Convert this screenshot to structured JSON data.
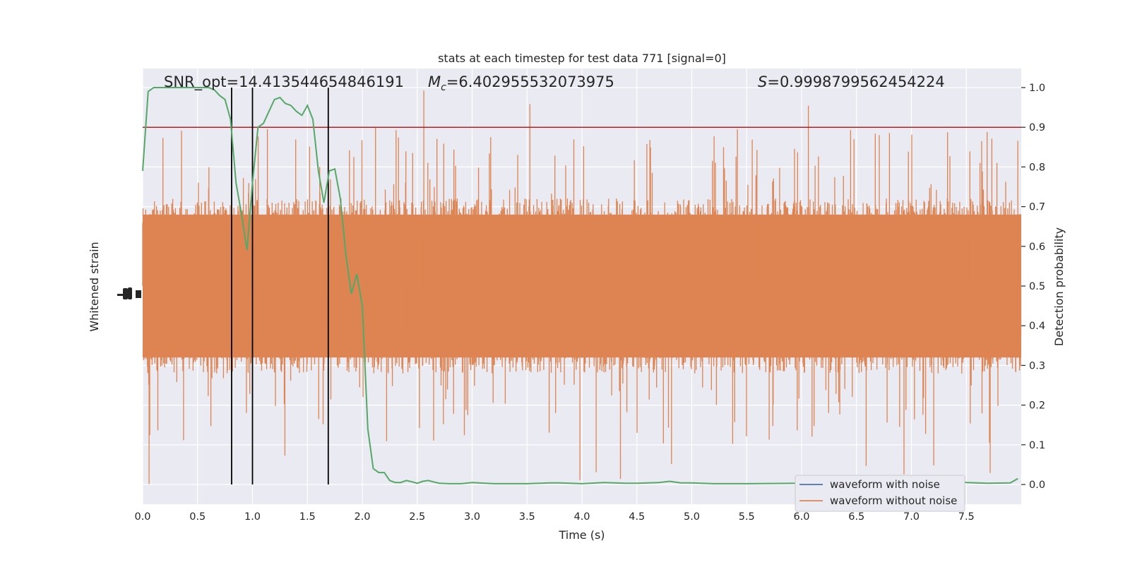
{
  "chart_data": {
    "type": "line",
    "title": "stats at each timestep for test data 771 [signal=0]",
    "xlabel": "Time (s)",
    "ylabel_left": "Whitened strain",
    "ylabel_right": "Detection probability",
    "xlim": [
      0.0,
      8.0
    ],
    "ylim_right": [
      -0.05,
      1.05
    ],
    "x_ticks": [
      0.0,
      0.5,
      1.0,
      1.5,
      2.0,
      2.5,
      3.0,
      3.5,
      4.0,
      4.5,
      5.0,
      5.5,
      6.0,
      6.5,
      7.0,
      7.5
    ],
    "x_tick_labels": [
      "0.0",
      "0.5",
      "1.0",
      "1.5",
      "2.0",
      "2.5",
      "3.0",
      "3.5",
      "4.0",
      "4.5",
      "5.0",
      "5.5",
      "6.0",
      "6.5",
      "7.0",
      "7.5"
    ],
    "y_ticks_right": [
      0.0,
      0.1,
      0.2,
      0.3,
      0.4,
      0.5,
      0.6,
      0.7,
      0.8,
      0.9,
      1.0
    ],
    "y_tick_labels_right": [
      "0.0",
      "0.1",
      "0.2",
      "0.3",
      "0.4",
      "0.5",
      "0.6",
      "0.7",
      "0.8",
      "0.9",
      "1.0"
    ],
    "grid": true,
    "legend_position": "bottom-right",
    "annotations": {
      "snr_label": "SNR_opt=14.413544654846191",
      "mc_symbol": "M",
      "mc_sub": "c",
      "mc_value": "=6.402955532073975",
      "s_symbol": "S",
      "s_value": "=0.9998799562454224"
    },
    "threshold": {
      "y": 0.9,
      "color": "#b22222"
    },
    "vertical_lines": {
      "x": [
        0.81,
        1.0,
        1.69
      ],
      "color": "#000000"
    },
    "series": [
      {
        "name": "waveform with noise",
        "color": "#4c72b0",
        "kind": "strain"
      },
      {
        "name": "waveform without noise",
        "color": "#dd8452",
        "kind": "strain",
        "band_center": 0.5,
        "typical_extent": [
          0.29,
          0.71
        ],
        "peak_extent": [
          0.0,
          1.0
        ]
      },
      {
        "kind": "detection_probability",
        "color": "#55a868",
        "x": [
          0.0,
          0.05,
          0.1,
          0.15,
          0.2,
          0.25,
          0.3,
          0.35,
          0.4,
          0.45,
          0.5,
          0.55,
          0.6,
          0.65,
          0.7,
          0.75,
          0.8,
          0.85,
          0.9,
          0.95,
          1.0,
          1.05,
          1.1,
          1.15,
          1.2,
          1.25,
          1.3,
          1.35,
          1.4,
          1.45,
          1.5,
          1.55,
          1.6,
          1.65,
          1.7,
          1.75,
          1.8,
          1.85,
          1.9,
          1.95,
          2.0,
          2.05,
          2.1,
          2.15,
          2.2,
          2.25,
          2.3,
          2.35,
          2.4,
          2.45,
          2.5,
          2.55,
          2.6,
          2.7,
          2.8,
          2.9,
          3.0,
          3.2,
          3.5,
          3.7,
          3.8,
          4.0,
          4.2,
          4.4,
          4.5,
          4.7,
          4.8,
          4.9,
          5.0,
          5.2,
          5.5,
          6.0,
          6.5,
          7.0,
          7.2,
          7.4,
          7.5,
          7.7,
          7.9,
          7.97
        ],
        "y": [
          0.79,
          0.99,
          1.0,
          1.0,
          1.0,
          1.0,
          1.0,
          1.0,
          1.0,
          1.0,
          1.0,
          1.0,
          1.0,
          0.995,
          0.98,
          0.97,
          0.92,
          0.76,
          0.68,
          0.59,
          0.76,
          0.9,
          0.91,
          0.94,
          0.97,
          0.975,
          0.96,
          0.955,
          0.94,
          0.93,
          0.955,
          0.92,
          0.79,
          0.71,
          0.79,
          0.795,
          0.72,
          0.58,
          0.48,
          0.53,
          0.45,
          0.14,
          0.04,
          0.03,
          0.03,
          0.01,
          0.005,
          0.005,
          0.01,
          0.007,
          0.003,
          0.008,
          0.01,
          0.003,
          0.002,
          0.002,
          0.005,
          0.002,
          0.002,
          0.004,
          0.004,
          0.002,
          0.005,
          0.003,
          0.003,
          0.005,
          0.008,
          0.004,
          0.004,
          0.002,
          0.002,
          0.003,
          0.003,
          0.002,
          0.004,
          0.01,
          0.005,
          0.003,
          0.004,
          0.015
        ]
      }
    ]
  }
}
